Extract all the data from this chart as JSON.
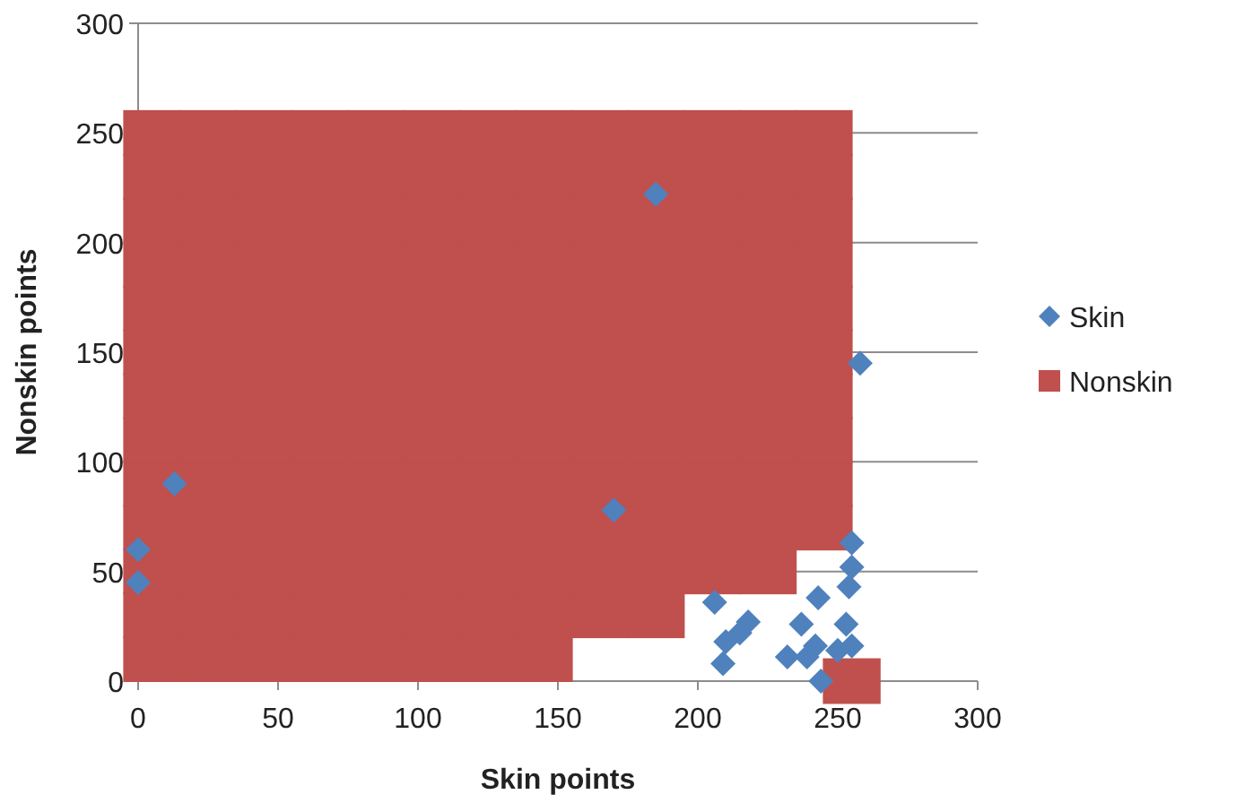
{
  "chart_data": {
    "type": "scatter",
    "xlabel": "Skin points",
    "ylabel": "Nonskin points",
    "xlim": [
      0,
      300
    ],
    "ylim": [
      0,
      300
    ],
    "xticks": [
      0,
      50,
      100,
      150,
      200,
      250,
      300
    ],
    "yticks": [
      0,
      50,
      100,
      150,
      200,
      250,
      300
    ],
    "grid": "y",
    "legend": "right",
    "series": [
      {
        "name": "Nonskin",
        "color": "#c0504d",
        "marker": "square",
        "x": [
          5,
          5,
          5,
          5,
          5,
          5,
          5,
          5,
          5,
          5,
          5,
          5,
          5,
          25,
          25,
          25,
          25,
          25,
          25,
          25,
          25,
          25,
          25,
          25,
          25,
          25,
          45,
          45,
          45,
          45,
          45,
          45,
          45,
          45,
          45,
          45,
          45,
          45,
          45,
          65,
          65,
          65,
          65,
          65,
          65,
          65,
          65,
          65,
          65,
          65,
          65,
          65,
          85,
          85,
          85,
          85,
          85,
          85,
          85,
          85,
          85,
          85,
          85,
          85,
          85,
          105,
          105,
          105,
          105,
          105,
          105,
          105,
          105,
          105,
          105,
          105,
          105,
          105,
          125,
          125,
          125,
          125,
          125,
          125,
          125,
          125,
          125,
          125,
          125,
          125,
          125,
          145,
          145,
          145,
          145,
          145,
          145,
          145,
          145,
          145,
          145,
          145,
          145,
          145,
          165,
          165,
          165,
          165,
          165,
          165,
          165,
          165,
          165,
          165,
          165,
          165,
          185,
          185,
          185,
          185,
          185,
          185,
          185,
          185,
          185,
          185,
          185,
          185,
          205,
          205,
          205,
          205,
          205,
          205,
          205,
          205,
          205,
          205,
          205,
          225,
          225,
          225,
          225,
          225,
          225,
          225,
          225,
          225,
          225,
          225,
          245,
          245,
          245,
          245,
          245,
          245,
          245,
          245,
          245,
          245,
          255
        ],
        "values": [
          10,
          30,
          50,
          70,
          90,
          110,
          130,
          150,
          170,
          190,
          210,
          230,
          250,
          10,
          30,
          50,
          70,
          90,
          110,
          130,
          150,
          170,
          190,
          210,
          230,
          250,
          10,
          30,
          50,
          70,
          90,
          110,
          130,
          150,
          170,
          190,
          210,
          230,
          250,
          10,
          30,
          50,
          70,
          90,
          110,
          130,
          150,
          170,
          190,
          210,
          230,
          250,
          10,
          30,
          50,
          70,
          90,
          110,
          130,
          150,
          170,
          190,
          210,
          230,
          250,
          10,
          30,
          50,
          70,
          90,
          110,
          130,
          150,
          170,
          190,
          210,
          230,
          250,
          10,
          30,
          50,
          70,
          90,
          110,
          130,
          150,
          170,
          190,
          210,
          230,
          250,
          10,
          30,
          50,
          70,
          90,
          110,
          130,
          150,
          170,
          190,
          210,
          230,
          250,
          30,
          50,
          70,
          90,
          110,
          130,
          150,
          170,
          190,
          210,
          230,
          250,
          30,
          50,
          70,
          90,
          110,
          130,
          150,
          170,
          190,
          210,
          230,
          250,
          50,
          70,
          90,
          110,
          130,
          150,
          170,
          190,
          210,
          230,
          250,
          50,
          70,
          90,
          110,
          130,
          150,
          170,
          190,
          210,
          230,
          250,
          70,
          90,
          110,
          130,
          150,
          170,
          190,
          210,
          230,
          250,
          0
        ]
      },
      {
        "name": "Skin",
        "color": "#4f81bd",
        "marker": "diamond",
        "x": [
          255,
          255,
          254,
          243,
          237,
          253,
          255,
          250,
          242,
          232,
          239,
          244,
          218,
          215,
          210,
          209,
          206,
          0,
          0,
          13,
          170,
          185,
          258
        ],
        "values": [
          63,
          52,
          43,
          38,
          26,
          26,
          16,
          14,
          16,
          11,
          11,
          0,
          27,
          22,
          18,
          8,
          36,
          45,
          60,
          90,
          78,
          222,
          145
        ]
      }
    ]
  }
}
